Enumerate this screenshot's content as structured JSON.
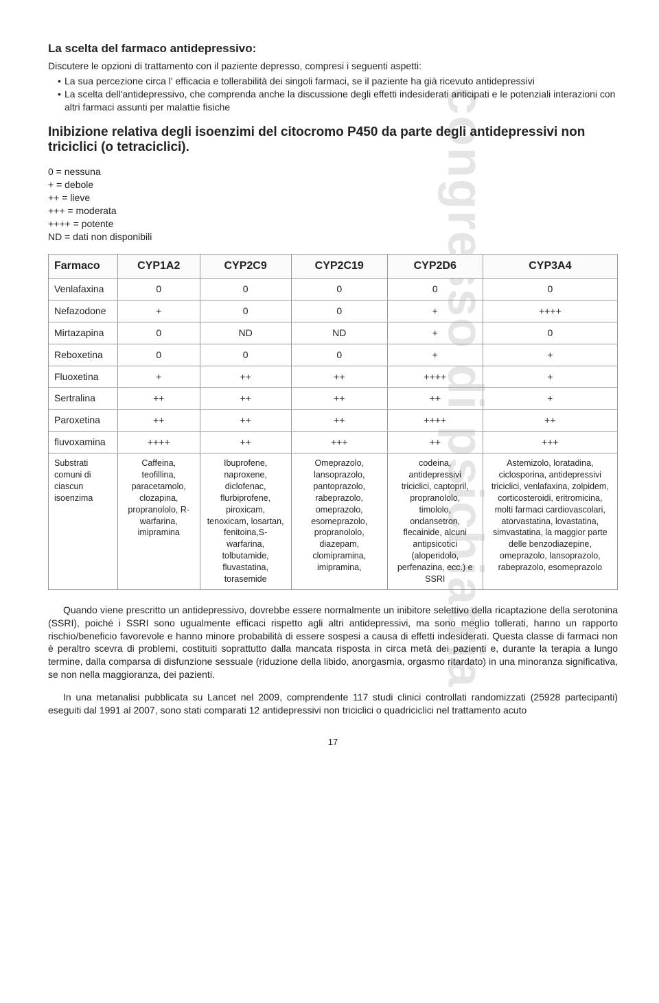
{
  "watermark": "congresso di psichiatria",
  "heading1": "La scelta del farmaco antidepressivo:",
  "intro": "Discutere le opzioni di trattamento con il paziente depresso, compresi i seguenti aspetti:",
  "bullets": {
    "b1": "La sua percezione circa l' efficacia e tollerabilità dei singoli farmaci, se il paziente ha già ricevuto antidepressivi",
    "b2": "La scelta dell'antidepressivo, che comprenda anche la discussione degli effetti indesiderati anticipati e le potenziali interazioni con altri farmaci assunti per malattie fisiche"
  },
  "heading2": "Inibizione relativa degli isoenzimi del citocromo P450 da parte degli antidepressivi non triciclici (o tetraciclici).",
  "legend": {
    "l1": "0 = nessuna",
    "l2": "+ = debole",
    "l3": "++ = lieve",
    "l4": "+++ = moderata",
    "l5": "++++ = potente",
    "l6": "ND = dati non disponibili"
  },
  "table": {
    "headers": {
      "h0": "Farmaco",
      "h1": "CYP1A2",
      "h2": "CYP2C9",
      "h3": "CYP2C19",
      "h4": "CYP2D6",
      "h5": "CYP3A4"
    },
    "rows": [
      {
        "drug": "Venlafaxina",
        "c1": "0",
        "c2": "0",
        "c3": "0",
        "c4": "0",
        "c5": "0"
      },
      {
        "drug": "Nefazodone",
        "c1": "+",
        "c2": "0",
        "c3": "0",
        "c4": "+",
        "c5": "++++"
      },
      {
        "drug": "Mirtazapina",
        "c1": "0",
        "c2": "ND",
        "c3": "ND",
        "c4": "+",
        "c5": "0"
      },
      {
        "drug": "Reboxetina",
        "c1": "0",
        "c2": "0",
        "c3": "0",
        "c4": "+",
        "c5": "+"
      },
      {
        "drug": "Fluoxetina",
        "c1": "+",
        "c2": "++",
        "c3": "++",
        "c4": "++++",
        "c5": "+"
      },
      {
        "drug": "Sertralina",
        "c1": "++",
        "c2": "++",
        "c3": "++",
        "c4": "++",
        "c5": "+"
      },
      {
        "drug": "Paroxetina",
        "c1": "++",
        "c2": "++",
        "c3": "++",
        "c4": "++++",
        "c5": "++"
      },
      {
        "drug": "fluvoxamina",
        "c1": "++++",
        "c2": "++",
        "c3": "+++",
        "c4": "++",
        "c5": "+++"
      }
    ],
    "substrates": {
      "label": "Substrati comuni di ciascun isoenzima",
      "s1": "Caffeina, teofillina, paracetamolo, clozapina, propranololo, R-warfarina, imipramina",
      "s2": "Ibuprofene, naproxene, diclofenac, flurbiprofene, piroxicam, tenoxicam, losartan, fenitoina,S-warfarina, tolbutamide, fluvastatina, torasemide",
      "s3": "Omeprazolo, lansoprazolo, pantoprazolo, rabeprazolo, omeprazolo, esomeprazolo, propranololo, diazepam, clomipramina, imipramina,",
      "s4": "codeina, antidepressivi triciclici, captopril, propranololo, timololo, ondansetron, flecainide, alcuni antipsicotici (aloperidolo, perfenazina, ecc.) e SSRI",
      "s5": "Astemizolo, loratadina, ciclosporina, antidepressivi triciclici, venlafaxina, zolpidem, corticosteroidi, eritromicina, molti farmaci cardiovascolari, atorvastatina, lovastatina, simvastatina, la maggior parte delle benzodiazepine, omeprazolo, lansoprazolo, rabeprazolo, esomeprazolo"
    }
  },
  "para1": "Quando viene prescritto un antidepressivo, dovrebbe essere normalmente un inibitore selettivo della ricaptazione della serotonina (SSRI), poiché i SSRI sono ugualmente efficaci rispetto agli altri antidepressivi, ma sono meglio tollerati, hanno un rapporto rischio/beneficio favorevole e hanno minore probabilità di essere sospesi a causa di effetti indesiderati. Questa classe di farmaci non è peraltro scevra di problemi, costituiti soprattutto dalla mancata risposta in circa metà dei pazienti e, durante la terapia a lungo termine, dalla comparsa di disfunzione sessuale (riduzione della libido, anorgasmia, orgasmo ritardato) in una minoranza significativa, se non nella maggioranza, dei pazienti.",
  "para2": "In una metanalisi pubblicata su Lancet nel 2009, comprendente 117 studi clinici controllati randomizzati (25928 partecipanti) eseguiti dal 1991 al 2007, sono stati comparati 12 antidepressivi non triciclici o quadriciclici nel trattamento acuto",
  "pageNum": "17"
}
